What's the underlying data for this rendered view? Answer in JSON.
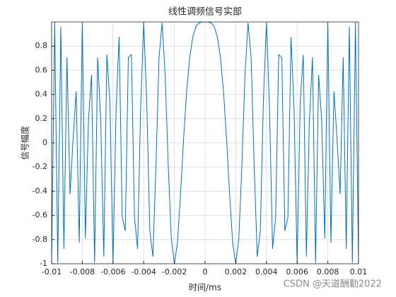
{
  "chart_data": {
    "type": "line",
    "title": "线性调频信号实部",
    "xlabel": "时间/ms",
    "ylabel": "信号幅度",
    "watermark": "CSDN @天道酬勤2022",
    "color": "#0072bd",
    "grid": true,
    "xlim": [
      -0.01,
      0.01
    ],
    "ylim": [
      -1,
      1
    ],
    "xticks": [
      -0.01,
      -0.008,
      -0.006,
      -0.004,
      -0.002,
      0,
      0.002,
      0.004,
      0.006,
      0.008,
      0.01
    ],
    "yticks": [
      -1,
      -0.8,
      -0.6,
      -0.4,
      -0.2,
      0,
      0.2,
      0.4,
      0.6,
      0.8
    ],
    "x": [
      -0.01,
      -0.0098,
      -0.0096,
      -0.0094,
      -0.0092,
      -0.009,
      -0.0088,
      -0.0086,
      -0.0084,
      -0.0082,
      -0.008,
      -0.0078,
      -0.0076,
      -0.0074,
      -0.0072,
      -0.007,
      -0.0068,
      -0.0066,
      -0.0064,
      -0.0062,
      -0.006,
      -0.0058,
      -0.0056,
      -0.0054,
      -0.0052,
      -0.005,
      -0.0048,
      -0.0046,
      -0.0044,
      -0.0042,
      -0.004,
      -0.0038,
      -0.0036,
      -0.0034,
      -0.0032,
      -0.003,
      -0.0028,
      -0.0026,
      -0.0024,
      -0.0022,
      -0.002,
      -0.0018,
      -0.0016,
      -0.0014,
      -0.0012,
      -0.001,
      -0.0008,
      -0.0006,
      -0.0004,
      -0.0002,
      0,
      0.0002,
      0.0004,
      0.0006,
      0.0008,
      0.001,
      0.0012,
      0.0014,
      0.0016,
      0.0018,
      0.002,
      0.0022,
      0.0024,
      0.0026,
      0.0028,
      0.003,
      0.0032,
      0.0034,
      0.0036,
      0.0038,
      0.004,
      0.0042,
      0.0044,
      0.0046,
      0.0048,
      0.005,
      0.0052,
      0.0054,
      0.0056,
      0.0058,
      0.006,
      0.0062,
      0.0064,
      0.0066,
      0.0068,
      0.007,
      0.0072,
      0.0074,
      0.0076,
      0.0078,
      0.008,
      0.0082,
      0.0084,
      0.0086,
      0.0088,
      0.009,
      0.0092,
      0.0094,
      0.0096,
      0.0098,
      0.01
    ],
    "values": [
      -1,
      0.9995,
      -0.9921,
      0.9603,
      -0.8763,
      0.7071,
      -0.4258,
      0.0314,
      0.4258,
      -0.8271,
      1,
      -0.7902,
      0.1874,
      0.5621,
      -0.9921,
      0.7071,
      0.1874,
      -0.9409,
      0.729,
      0.3387,
      -1,
      0.279,
      0.8763,
      -0.6129,
      -0.729,
      0.7071,
      0.729,
      -0.6129,
      -0.8763,
      0.279,
      1,
      0.3387,
      -0.729,
      -0.9409,
      -0.1874,
      0.7071,
      0.9921,
      0.5621,
      -0.1874,
      -0.7902,
      -1,
      -0.8271,
      -0.4258,
      0.0314,
      0.4258,
      0.7071,
      0.8763,
      0.9603,
      0.9921,
      0.9995,
      1,
      0.9995,
      0.9921,
      0.9603,
      0.8763,
      0.7071,
      0.4258,
      0.0314,
      -0.4258,
      -0.8271,
      -1,
      -0.7902,
      -0.1874,
      0.5621,
      0.9921,
      0.7071,
      -0.1874,
      -0.9409,
      -0.729,
      0.3387,
      1,
      0.279,
      -0.8763,
      -0.6129,
      0.729,
      0.7071,
      -0.729,
      -0.6129,
      0.8763,
      0.279,
      -1,
      0.3387,
      0.729,
      -0.9409,
      0.1874,
      0.7071,
      -0.9921,
      0.5621,
      0.1874,
      -0.7902,
      1,
      -0.8271,
      0.4258,
      0.0314,
      -0.4258,
      0.7071,
      -0.8763,
      0.9603,
      -0.9921,
      0.9995,
      -1
    ]
  }
}
